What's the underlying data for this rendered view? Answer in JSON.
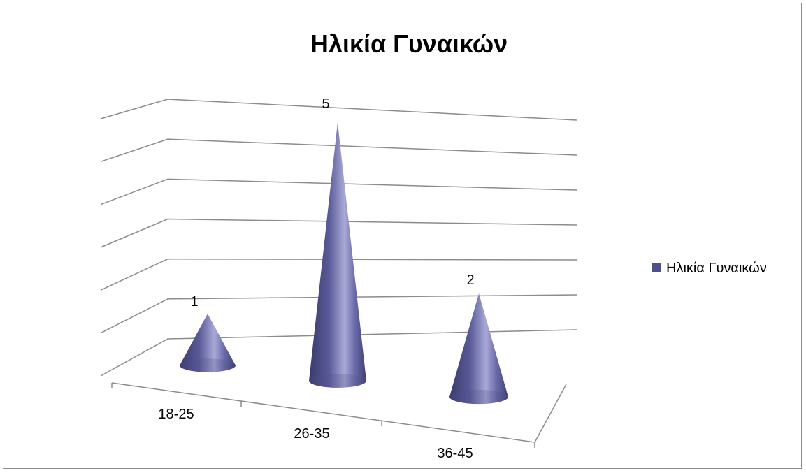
{
  "chart_data": {
    "type": "bar",
    "style": "3d-cone",
    "title": "Ηλικία Γυναικών",
    "categories": [
      "18-25",
      "26-35",
      "36-45"
    ],
    "series": [
      {
        "name": "Ηλικία Γυναικών",
        "values": [
          1,
          5,
          2
        ],
        "color": "#4f4f8c"
      }
    ],
    "data_labels": [
      "1",
      "5",
      "2"
    ],
    "ylim": [
      0,
      6
    ],
    "grid": true,
    "legend_position": "right",
    "colors": {
      "series": "#4f4f8c",
      "gridline": "#8c8c8c",
      "border": "#8c8c8c"
    }
  }
}
